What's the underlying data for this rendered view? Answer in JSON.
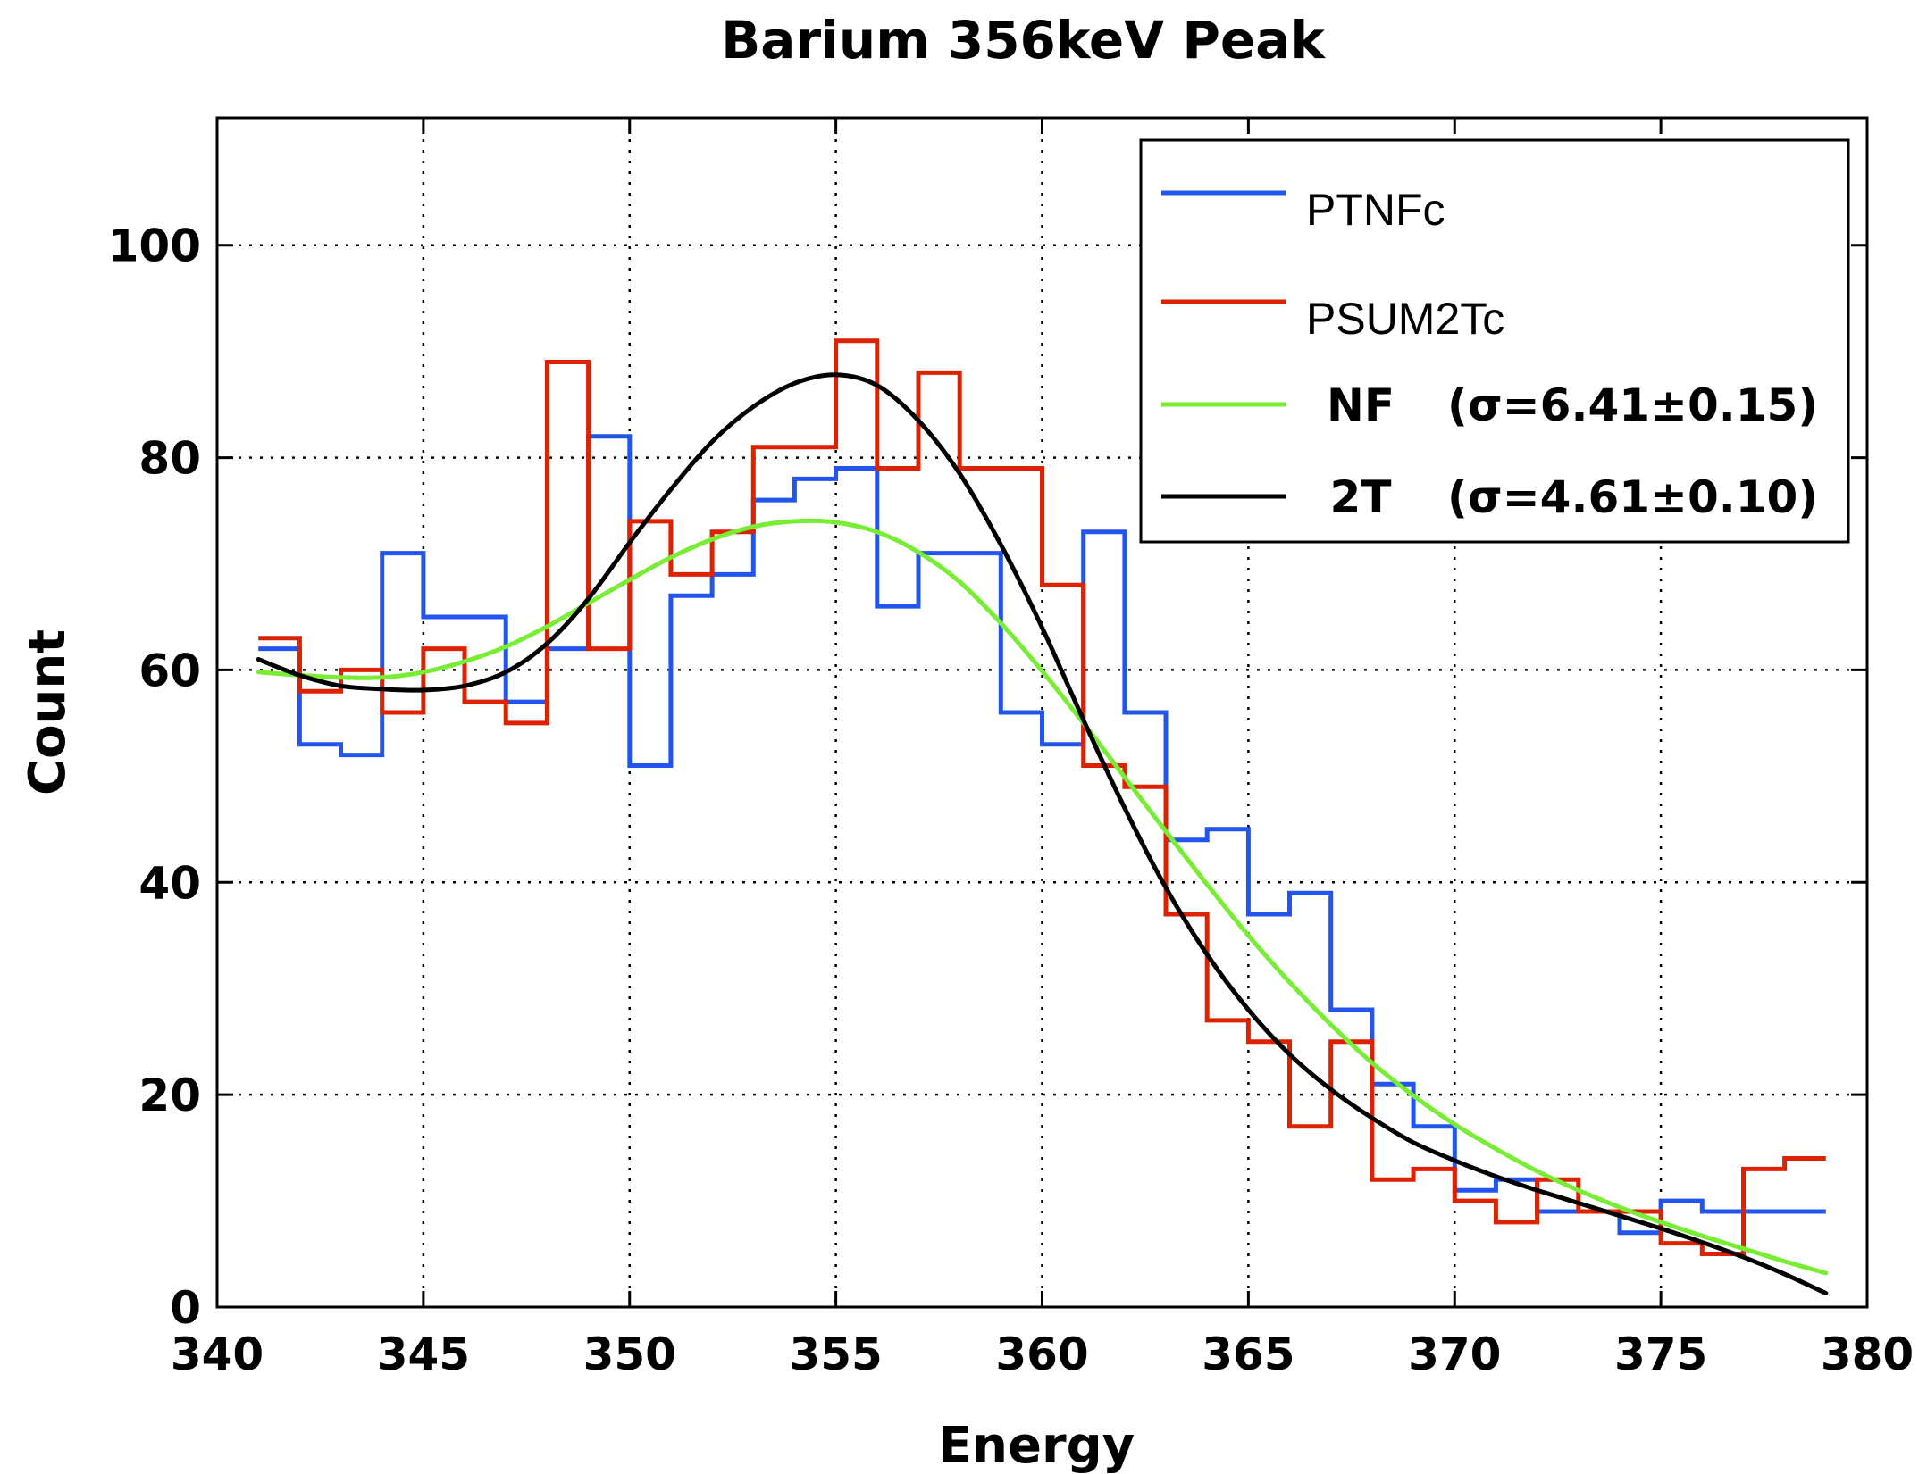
{
  "chart_data": {
    "type": "line",
    "title": "Barium 356keV Peak",
    "xlabel": "Energy",
    "ylabel": "Count",
    "xlim": [
      340,
      380
    ],
    "ylim": [
      0,
      112
    ],
    "grid": true,
    "legend_position": "top-right",
    "x_ticks": [
      "340",
      "345",
      "350",
      "355",
      "360",
      "365",
      "370",
      "375",
      "380"
    ],
    "x_tick_values": [
      340,
      345,
      350,
      355,
      360,
      365,
      370,
      375,
      380
    ],
    "y_ticks": [
      "0",
      "20",
      "40",
      "60",
      "80",
      "100"
    ],
    "y_tick_values": [
      0,
      20,
      40,
      60,
      80,
      100
    ],
    "bin_edges": [
      341,
      342,
      343,
      344,
      345,
      346,
      347,
      348,
      349,
      350,
      351,
      352,
      353,
      354,
      355,
      356,
      357,
      358,
      359,
      360,
      361,
      362,
      363,
      364,
      365,
      366,
      367,
      368,
      369,
      370,
      371,
      372,
      373,
      374,
      375,
      376,
      377,
      378,
      379
    ],
    "series": [
      {
        "name": "PTNFc",
        "style": "step",
        "color": "#2255ee",
        "values": [
          62,
          53,
          52,
          71,
          65,
          65,
          57,
          62,
          82,
          51,
          67,
          69,
          76,
          78,
          79,
          66,
          71,
          71,
          56,
          53,
          73,
          56,
          44,
          45,
          37,
          39,
          28,
          21,
          17,
          11,
          12,
          9,
          9,
          7,
          10,
          9,
          9,
          9
        ]
      },
      {
        "name": "PSUM2Tc",
        "style": "step",
        "color": "#dd2200",
        "values": [
          63,
          58,
          60,
          56,
          62,
          57,
          55,
          89,
          62,
          74,
          69,
          73,
          81,
          81,
          91,
          79,
          88,
          79,
          79,
          68,
          51,
          49,
          37,
          27,
          25,
          17,
          25,
          12,
          13,
          10,
          8,
          12,
          9,
          9,
          6,
          5,
          13,
          14
        ]
      },
      {
        "name": "NF",
        "label_suffix": "(σ=6.41±0.15)",
        "style": "curve",
        "color": "#77ee33",
        "x": [
          341,
          342,
          343,
          344,
          345,
          346,
          347,
          348,
          349,
          350,
          351,
          352,
          353,
          354,
          355,
          356,
          357,
          358,
          359,
          360,
          361,
          362,
          363,
          364,
          365,
          366,
          367,
          368,
          369,
          370,
          371,
          372,
          373,
          374,
          375,
          376,
          377,
          378,
          379
        ],
        "y": [
          59.8,
          59.5,
          59.3,
          59.3,
          59.8,
          60.8,
          62.2,
          64.1,
          66.3,
          68.5,
          70.6,
          72.3,
          73.5,
          74.0,
          73.9,
          73.0,
          71.1,
          68.3,
          64.4,
          59.9,
          55.0,
          49.9,
          44.8,
          39.8,
          35.0,
          30.6,
          26.6,
          23.0,
          19.9,
          17.2,
          14.9,
          12.8,
          11.0,
          9.4,
          8.0,
          6.7,
          5.5,
          4.3,
          3.2
        ]
      },
      {
        "name": "2T",
        "label_suffix": "(σ=4.61±0.10)",
        "style": "curve",
        "color": "#000000",
        "x": [
          341,
          342,
          343,
          344,
          345,
          346,
          347,
          348,
          349,
          350,
          351,
          352,
          353,
          354,
          355,
          356,
          357,
          358,
          359,
          360,
          361,
          362,
          363,
          364,
          365,
          366,
          367,
          368,
          369,
          370,
          371,
          372,
          373,
          374,
          375,
          376,
          377,
          378,
          379
        ],
        "y": [
          61.0,
          59.5,
          58.5,
          58.2,
          58.1,
          58.5,
          59.8,
          62.5,
          66.7,
          72.0,
          77.0,
          81.5,
          84.8,
          87.0,
          87.8,
          86.8,
          83.5,
          78.5,
          71.8,
          64.0,
          55.3,
          47.0,
          39.5,
          33.2,
          28.0,
          23.8,
          20.5,
          17.8,
          15.5,
          13.8,
          12.3,
          11.0,
          9.8,
          8.6,
          7.4,
          6.1,
          4.7,
          3.1,
          1.3
        ]
      }
    ]
  }
}
